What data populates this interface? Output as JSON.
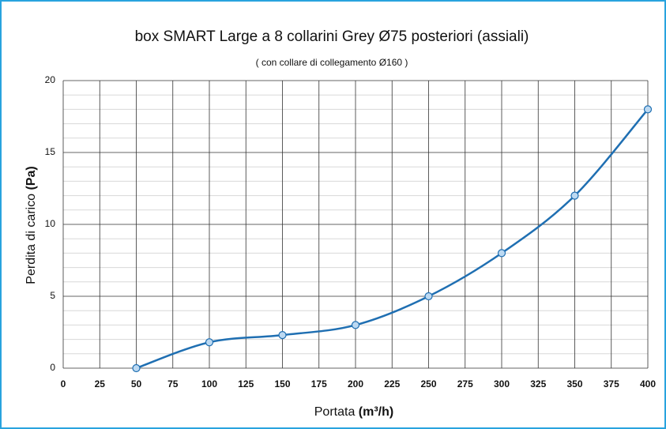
{
  "chart_data": {
    "type": "line",
    "title": "box SMART Large a 8 collarini Grey Ø75 posteriori (assiali)",
    "subtitle": "( con collare di collegamento Ø160 )",
    "x_label": "Portata",
    "x_unit": "(m³/h)",
    "y_label": "Perdita di carico",
    "y_unit": "(Pa)",
    "x": [
      50,
      100,
      150,
      200,
      250,
      300,
      350,
      400
    ],
    "series": [
      {
        "color": "#1f6fb2",
        "values": [
          0,
          1.8,
          2.3,
          3,
          5,
          8,
          12,
          18
        ]
      }
    ],
    "xlim": [
      0,
      400
    ],
    "xticks": [
      0,
      25,
      50,
      75,
      100,
      125,
      150,
      175,
      200,
      225,
      250,
      275,
      300,
      325,
      350,
      375,
      400
    ],
    "ylim": [
      0,
      20
    ],
    "yticks": [
      0,
      5,
      10,
      15,
      20
    ],
    "minor_yticks": [
      1,
      2,
      3,
      4,
      6,
      7,
      8,
      9,
      11,
      12,
      13,
      14,
      16,
      17,
      18,
      19
    ],
    "grid": true,
    "smooth": true
  }
}
